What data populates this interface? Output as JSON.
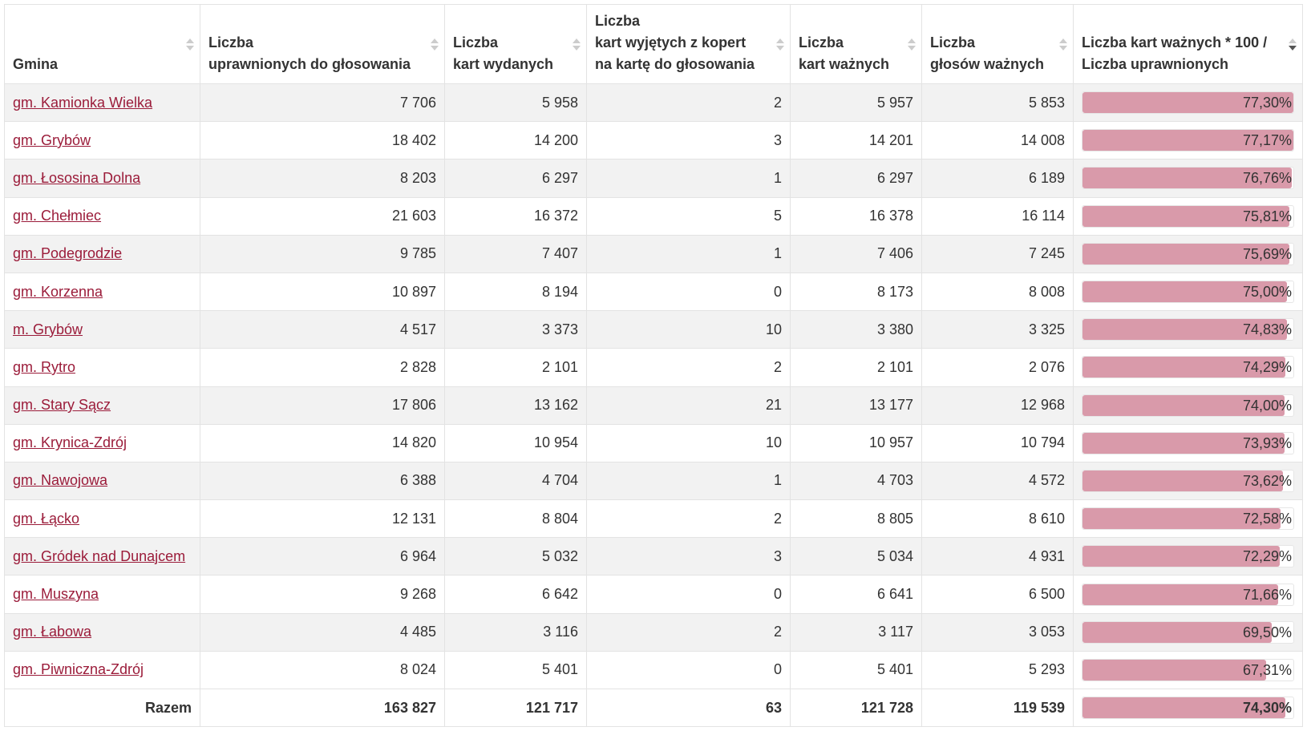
{
  "table": {
    "headers": [
      [
        "Gmina"
      ],
      [
        "Liczba",
        "uprawnionych do głosowania"
      ],
      [
        "Liczba",
        "kart wydanych"
      ],
      [
        "Liczba",
        "kart wyjętych z kopert",
        "na kartę do głosowania"
      ],
      [
        "Liczba",
        "kart ważnych"
      ],
      [
        "Liczba",
        "głosów ważnych"
      ],
      [
        "Liczba kart ważnych * 100 /",
        "Liczba uprawnionych"
      ]
    ],
    "rows": [
      {
        "gmina": "gm. Kamionka Wielka",
        "cells": [
          "7 706",
          "5 958",
          "2",
          "5 957",
          "5 853"
        ],
        "turnout": {
          "value": 77.3,
          "label": "77,30%"
        }
      },
      {
        "gmina": "gm. Grybów",
        "cells": [
          "18 402",
          "14 200",
          "3",
          "14 201",
          "14 008"
        ],
        "turnout": {
          "value": 77.17,
          "label": "77,17%"
        }
      },
      {
        "gmina": "gm. Łososina Dolna",
        "cells": [
          "8 203",
          "6 297",
          "1",
          "6 297",
          "6 189"
        ],
        "turnout": {
          "value": 76.76,
          "label": "76,76%"
        }
      },
      {
        "gmina": "gm. Chełmiec",
        "cells": [
          "21 603",
          "16 372",
          "5",
          "16 378",
          "16 114"
        ],
        "turnout": {
          "value": 75.81,
          "label": "75,81%"
        }
      },
      {
        "gmina": "gm. Podegrodzie",
        "cells": [
          "9 785",
          "7 407",
          "1",
          "7 406",
          "7 245"
        ],
        "turnout": {
          "value": 75.69,
          "label": "75,69%"
        }
      },
      {
        "gmina": "gm. Korzenna",
        "cells": [
          "10 897",
          "8 194",
          "0",
          "8 173",
          "8 008"
        ],
        "turnout": {
          "value": 75.0,
          "label": "75,00%"
        }
      },
      {
        "gmina": "m. Grybów",
        "cells": [
          "4 517",
          "3 373",
          "10",
          "3 380",
          "3 325"
        ],
        "turnout": {
          "value": 74.83,
          "label": "74,83%"
        }
      },
      {
        "gmina": "gm. Rytro",
        "cells": [
          "2 828",
          "2 101",
          "2",
          "2 101",
          "2 076"
        ],
        "turnout": {
          "value": 74.29,
          "label": "74,29%"
        }
      },
      {
        "gmina": "gm. Stary Sącz",
        "cells": [
          "17 806",
          "13 162",
          "21",
          "13 177",
          "12 968"
        ],
        "turnout": {
          "value": 74.0,
          "label": "74,00%"
        }
      },
      {
        "gmina": "gm. Krynica-Zdrój",
        "cells": [
          "14 820",
          "10 954",
          "10",
          "10 957",
          "10 794"
        ],
        "turnout": {
          "value": 73.93,
          "label": "73,93%"
        }
      },
      {
        "gmina": "gm. Nawojowa",
        "cells": [
          "6 388",
          "4 704",
          "1",
          "4 703",
          "4 572"
        ],
        "turnout": {
          "value": 73.62,
          "label": "73,62%"
        }
      },
      {
        "gmina": "gm. Łącko",
        "cells": [
          "12 131",
          "8 804",
          "2",
          "8 805",
          "8 610"
        ],
        "turnout": {
          "value": 72.58,
          "label": "72,58%"
        }
      },
      {
        "gmina": "gm. Gródek nad Dunajcem",
        "cells": [
          "6 964",
          "5 032",
          "3",
          "5 034",
          "4 931"
        ],
        "turnout": {
          "value": 72.29,
          "label": "72,29%"
        }
      },
      {
        "gmina": "gm. Muszyna",
        "cells": [
          "9 268",
          "6 642",
          "0",
          "6 641",
          "6 500"
        ],
        "turnout": {
          "value": 71.66,
          "label": "71,66%"
        }
      },
      {
        "gmina": "gm. Łabowa",
        "cells": [
          "4 485",
          "3 116",
          "2",
          "3 117",
          "3 053"
        ],
        "turnout": {
          "value": 69.5,
          "label": "69,50%"
        }
      },
      {
        "gmina": "gm. Piwniczna-Zdrój",
        "cells": [
          "8 024",
          "5 401",
          "0",
          "5 401",
          "5 293"
        ],
        "turnout": {
          "value": 67.31,
          "label": "67,31%"
        }
      }
    ],
    "total": {
      "gmina": "Razem",
      "cells": [
        "163 827",
        "121 717",
        "63",
        "121 728",
        "119 539"
      ],
      "turnout": {
        "value": 74.3,
        "label": "74,30%"
      }
    }
  }
}
